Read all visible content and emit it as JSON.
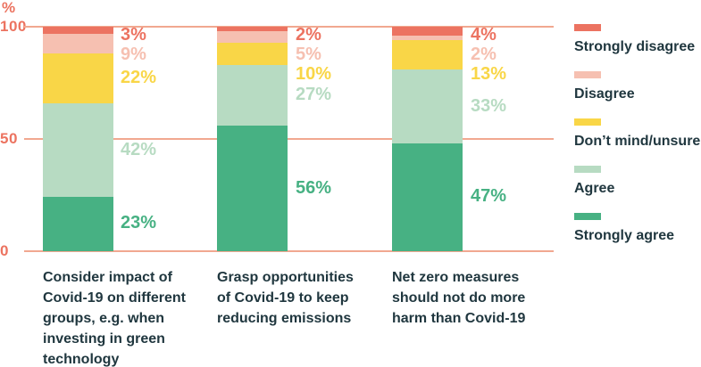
{
  "chart_data": {
    "type": "bar",
    "stacked": true,
    "orientation": "vertical",
    "unit_label": "%",
    "ylim": [
      0,
      100
    ],
    "yticks": [
      "100",
      "50",
      "0"
    ],
    "ytick_values": [
      100,
      50,
      0
    ],
    "grid": true,
    "legend_position": "right",
    "categories": [
      {
        "label": "Consider impact of Covid-19 on different groups, e.g. when investing in green technology",
        "lines": [
          "Consider impact of",
          "Covid-19 on different",
          "groups, e.g. when",
          "investing in green",
          "technology"
        ]
      },
      {
        "label": "Grasp opportunities of Covid-19 to keep reducing emissions",
        "lines": [
          "Grasp opportunities",
          "of Covid-19 to keep",
          "reducing emissions"
        ]
      },
      {
        "label": "Net zero measures should not do more harm than Covid-19",
        "lines": [
          "Net zero measures",
          "should not do more",
          "harm than Covid-19"
        ]
      }
    ],
    "series": [
      {
        "name": "Strongly disagree",
        "color": "#EC7361",
        "values": [
          3,
          2,
          4
        ]
      },
      {
        "name": "Disagree",
        "color": "#F6C0B1",
        "values": [
          9,
          5,
          2
        ]
      },
      {
        "name": "Don’t mind/unsure",
        "color": "#F9D647",
        "values": [
          22,
          10,
          13
        ]
      },
      {
        "name": "Agree",
        "color": "#B7DBC2",
        "values": [
          42,
          27,
          33
        ]
      },
      {
        "name": "Strongly agree",
        "color": "#47B183",
        "values": [
          23,
          56,
          47
        ]
      }
    ],
    "data_labels": [
      [
        "3%",
        "9%",
        "22%",
        "42%",
        "23%"
      ],
      [
        "2%",
        "5%",
        "10%",
        "27%",
        "56%"
      ],
      [
        "4%",
        "2%",
        "13%",
        "33%",
        "47%"
      ]
    ]
  },
  "colors": {
    "axis_text": "#EC7360",
    "gridline": "#F1A890",
    "label_text": "#20373F",
    "background": "#FFFFFF"
  }
}
